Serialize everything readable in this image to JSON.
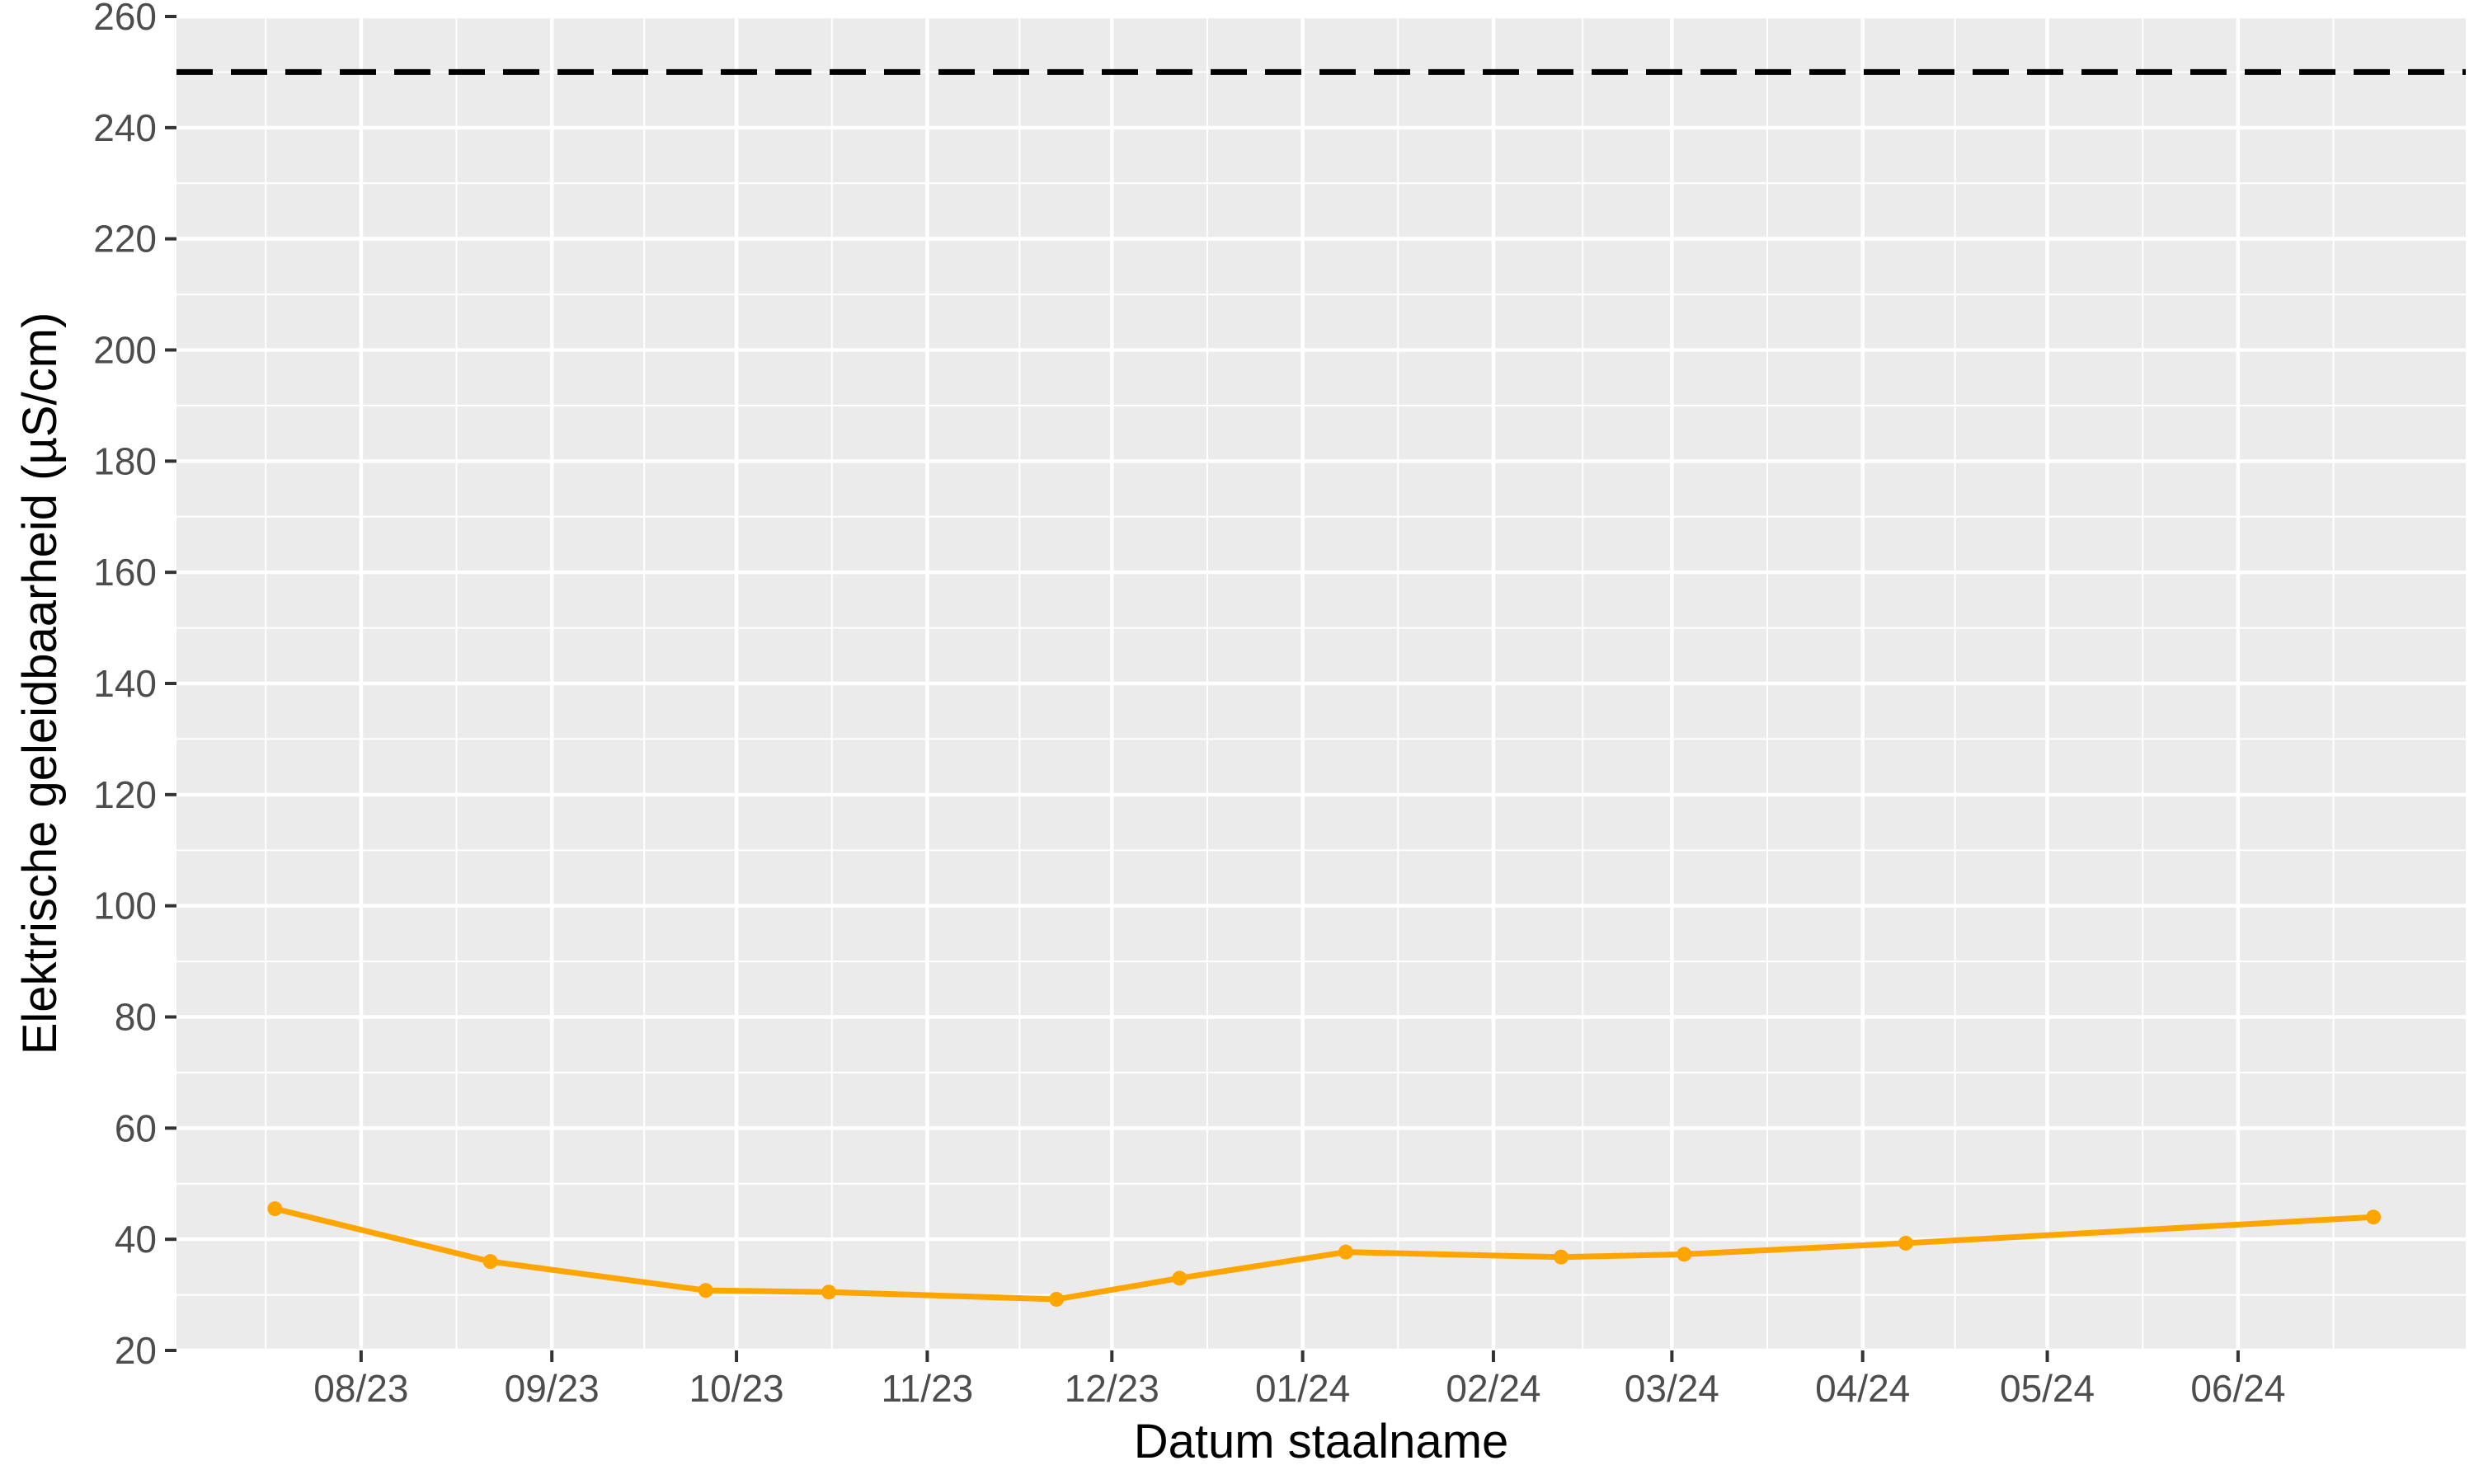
{
  "chart_data": {
    "type": "line",
    "title": "",
    "xlabel": "Datum staalname",
    "ylabel": "Elektrische geleidbaarheid (µS/cm)",
    "ylim": [
      20,
      260
    ],
    "yticks": [
      20,
      40,
      60,
      80,
      100,
      120,
      140,
      160,
      180,
      200,
      220,
      240,
      260
    ],
    "xlim": [
      "2023-07-02",
      "2024-07-08"
    ],
    "xticks": [
      {
        "date": "2023-08-01",
        "label": "08/23"
      },
      {
        "date": "2023-09-01",
        "label": "09/23"
      },
      {
        "date": "2023-10-01",
        "label": "10/23"
      },
      {
        "date": "2023-11-01",
        "label": "11/23"
      },
      {
        "date": "2023-12-01",
        "label": "12/23"
      },
      {
        "date": "2024-01-01",
        "label": "01/24"
      },
      {
        "date": "2024-02-01",
        "label": "02/24"
      },
      {
        "date": "2024-03-01",
        "label": "03/24"
      },
      {
        "date": "2024-04-01",
        "label": "04/24"
      },
      {
        "date": "2024-05-01",
        "label": "05/24"
      },
      {
        "date": "2024-06-01",
        "label": "06/24"
      }
    ],
    "series": [
      {
        "color": "#FFA500",
        "points": [
          {
            "date": "2023-07-18",
            "value": 45.5
          },
          {
            "date": "2023-08-22",
            "value": 36.0
          },
          {
            "date": "2023-09-26",
            "value": 30.8
          },
          {
            "date": "2023-10-16",
            "value": 30.5
          },
          {
            "date": "2023-11-22",
            "value": 29.2
          },
          {
            "date": "2023-12-12",
            "value": 33.0
          },
          {
            "date": "2024-01-08",
            "value": 37.7
          },
          {
            "date": "2024-02-12",
            "value": 36.8
          },
          {
            "date": "2024-03-03",
            "value": 37.3
          },
          {
            "date": "2024-04-08",
            "value": 39.3
          },
          {
            "date": "2024-06-23",
            "value": 44.0
          }
        ]
      }
    ],
    "reference_line": {
      "value": 250,
      "style": "dashed",
      "color": "#000000"
    },
    "grid": true,
    "panel_background": "#EBEBEB",
    "grid_color": "#FFFFFF"
  }
}
